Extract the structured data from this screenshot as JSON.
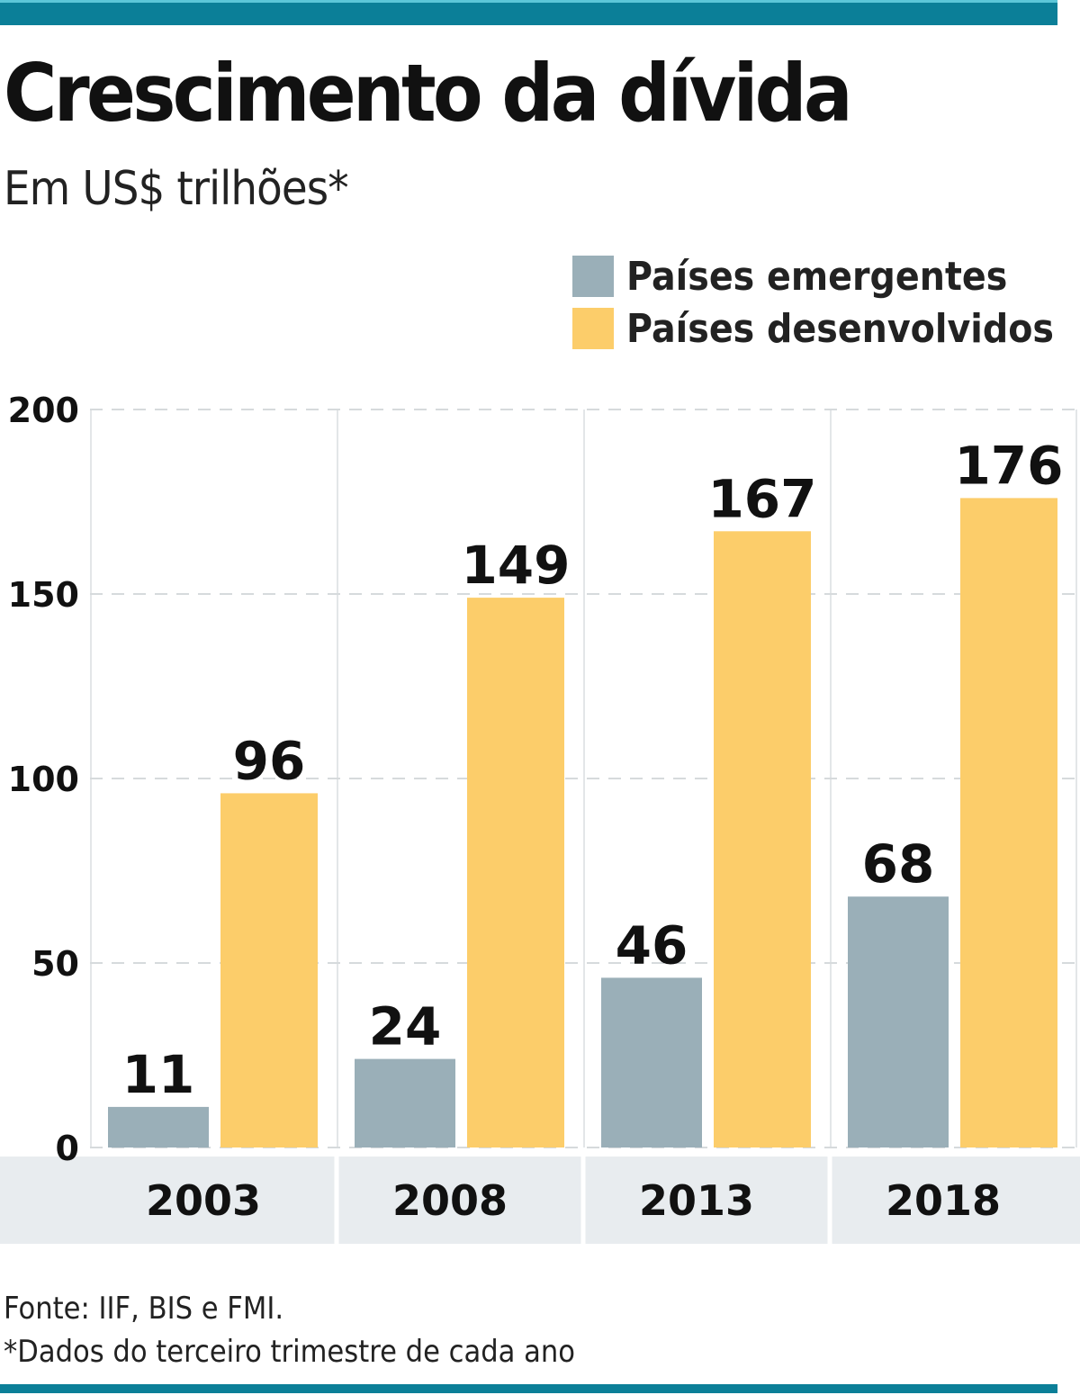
{
  "chart_data": {
    "type": "bar",
    "title": "Crescimento da dívida",
    "subtitle": "Em US$ trilhões*",
    "categories": [
      "2003",
      "2008",
      "2013",
      "2018"
    ],
    "series": [
      {
        "name": "Países emergentes",
        "color": "#9aafb8",
        "values": [
          11,
          24,
          46,
          68
        ]
      },
      {
        "name": "Países desenvolvidos",
        "color": "#fccd6a",
        "values": [
          96,
          149,
          167,
          176
        ]
      }
    ],
    "yticks": [
      "0",
      "50",
      "100",
      "150",
      "200"
    ],
    "ylim": [
      0,
      200
    ],
    "grid": true,
    "legend": "top-right",
    "data_labels": true
  },
  "footer": {
    "source": "Fonte: IIF, BIS e FMI.",
    "note": "*Dados do terceiro trimestre de cada ano"
  },
  "colors": {
    "accent_bar": "#0b7f98",
    "category_band": "#e8ecef"
  }
}
